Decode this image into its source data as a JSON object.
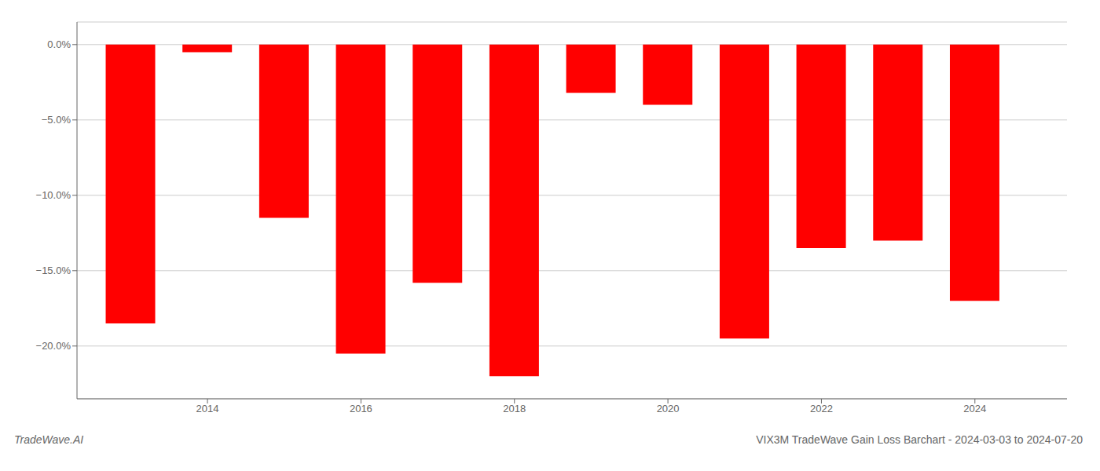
{
  "chart_data": {
    "type": "bar",
    "title": "VIX3M TradeWave Gain Loss Barchart - 2024-03-03 to 2024-07-20",
    "annotations": [
      "TradeWave.AI"
    ],
    "x": [
      2013,
      2014,
      2015,
      2016,
      2017,
      2018,
      2019,
      2020,
      2021,
      2022,
      2023,
      2024
    ],
    "values": [
      -18.5,
      -0.5,
      -11.5,
      -20.5,
      -15.8,
      -22.0,
      -3.2,
      -4.0,
      -19.5,
      -13.5,
      -13.0,
      -17.0
    ],
    "color": "#ff0000",
    "xlim": [
      2012.3,
      2025.2
    ],
    "xticks": [
      2014,
      2016,
      2018,
      2020,
      2022,
      2024
    ],
    "ylim": [
      -23.5,
      1.5
    ],
    "yticks": [
      {
        "value": 0.0,
        "label": "0.0%"
      },
      {
        "value": -5.0,
        "label": "−5.0%"
      },
      {
        "value": -10.0,
        "label": "−10.0%"
      },
      {
        "value": -15.0,
        "label": "−15.0%"
      },
      {
        "value": -20.0,
        "label": "−20.0%"
      }
    ],
    "grid": true
  }
}
